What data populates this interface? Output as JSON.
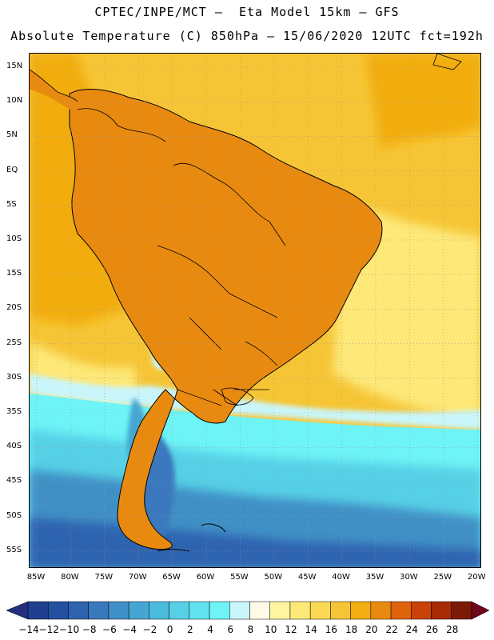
{
  "title_line1": "CPTEC/INPE/MCT –  Eta Model 15km – GFS",
  "title_line2": "Absolute Temperature (C) 850hPa – 15/06/2020 12UTC fct=192h",
  "lat_labels": [
    "15N",
    "10N",
    "5N",
    "EQ",
    "5S",
    "10S",
    "15S",
    "20S",
    "25S",
    "30S",
    "35S",
    "40S",
    "45S",
    "50S",
    "55S"
  ],
  "lon_labels": [
    "85W",
    "80W",
    "75W",
    "70W",
    "65W",
    "60W",
    "55W",
    "50W",
    "45W",
    "40W",
    "35W",
    "30W",
    "25W",
    "20W"
  ],
  "colorbar": {
    "labels": [
      "-14",
      "-12",
      "-10",
      "-8",
      "-6",
      "-4",
      "-2",
      "0",
      "2",
      "4",
      "6",
      "8",
      "10",
      "12",
      "14",
      "16",
      "18",
      "20",
      "22",
      "24",
      "26",
      "28"
    ],
    "colors": [
      "#1f3f8f",
      "#2550a0",
      "#2f63b0",
      "#3a78bd",
      "#3f90c6",
      "#45a6d3",
      "#4cbcdd",
      "#57d0e6",
      "#62e2ef",
      "#6ef4f6",
      "#c9f6fa",
      "#fffbe8",
      "#fff5a0",
      "#fde878",
      "#fbd955",
      "#f6c535",
      "#f2ad10",
      "#e98a10",
      "#e0620a",
      "#c94308",
      "#a92b06",
      "#7c1a08"
    ],
    "end_colors": [
      "#23307e",
      "#70051c"
    ]
  },
  "map": {
    "ocean_levels": {
      "south_atlantic_deep": "#2f63b0",
      "south_mid": "#3f90c6",
      "south_light": "#57d0e6",
      "frontal_band": "#6ef4f6",
      "cold_white": "#c9f6fa",
      "pacific_warm": "#f2ad10",
      "atlantic_warm": "#f6c535",
      "atlantic_pale": "#fde878"
    },
    "land_levels": {
      "amazon_hot": "#a92b06",
      "interior_hot": "#c94308",
      "brazil_warm": "#e0620a",
      "south_warm": "#e98a10",
      "patagonia": "#3a78bd",
      "andes_cold": "#45a6d3"
    }
  }
}
